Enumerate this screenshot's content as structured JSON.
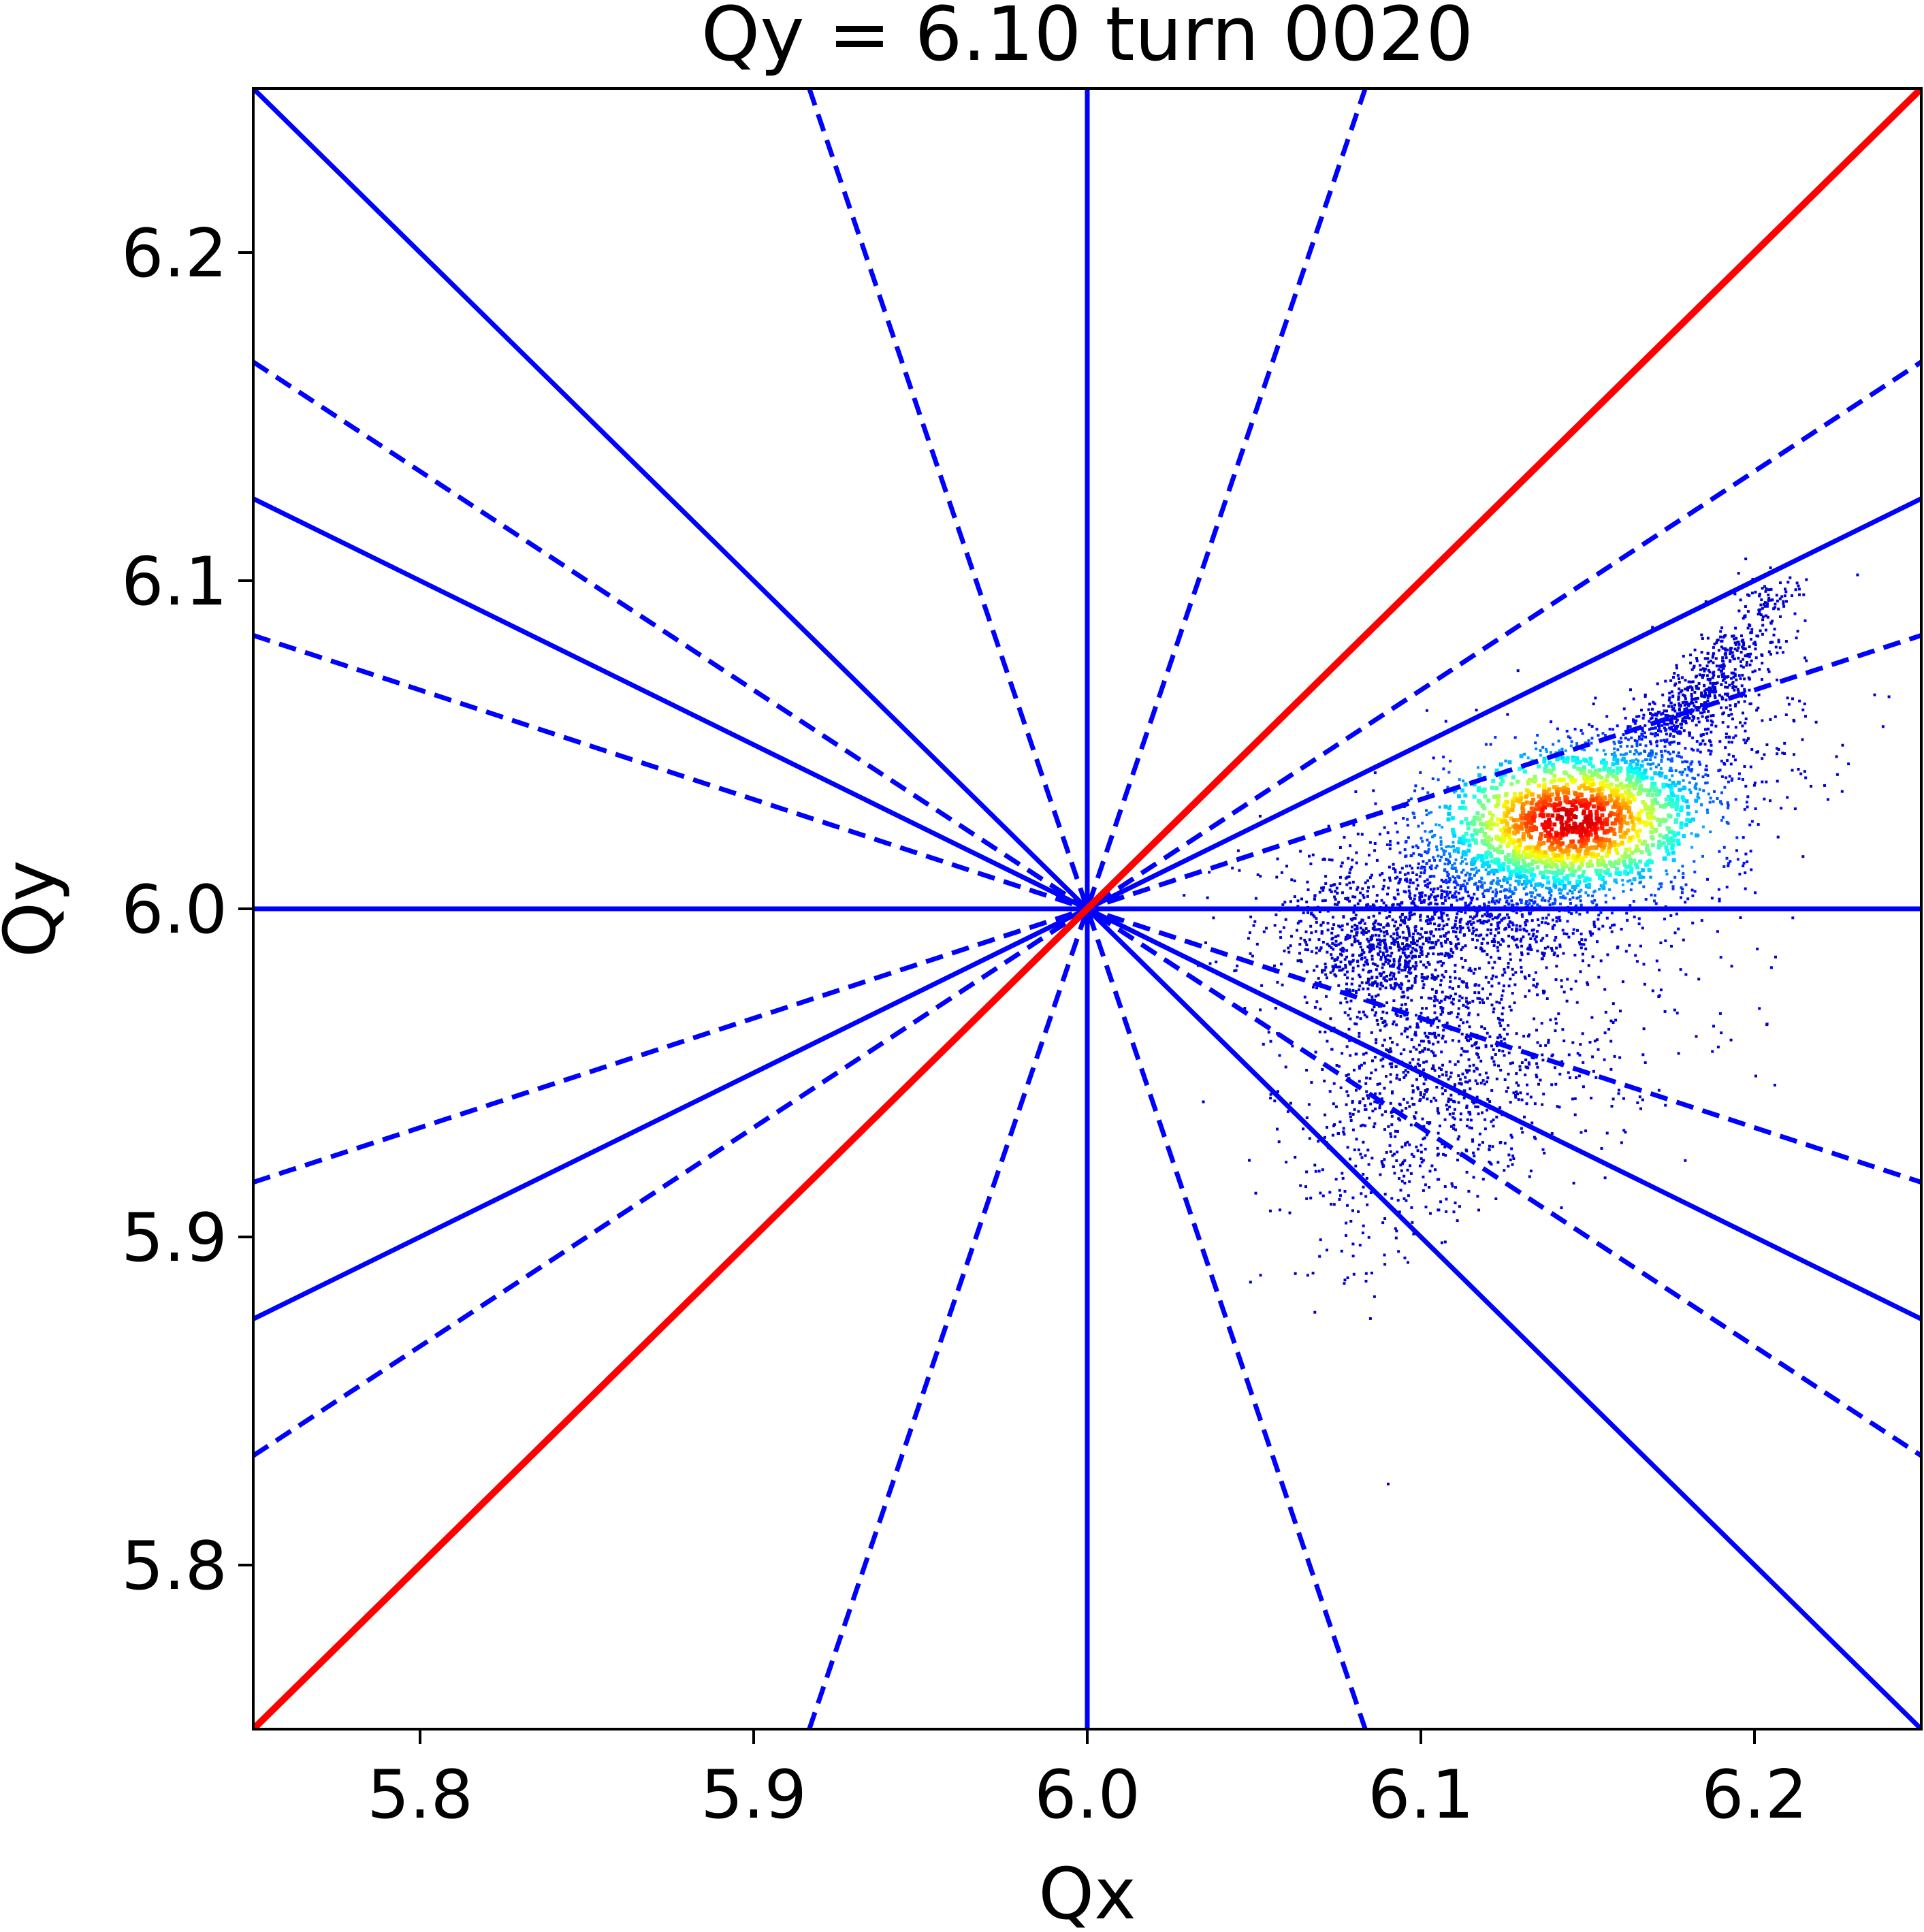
{
  "chart_data": {
    "type": "scatter",
    "title": "Qy = 6.10 turn 0020",
    "xlabel": "Qx",
    "ylabel": "Qy",
    "xlim": [
      5.75,
      6.25
    ],
    "ylim": [
      5.75,
      6.25
    ],
    "xticks": [
      5.8,
      5.9,
      6.0,
      6.1,
      6.2
    ],
    "yticks": [
      5.8,
      5.9,
      6.0,
      6.1,
      6.2
    ],
    "xtick_labels": [
      "5.8",
      "5.9",
      "6.0",
      "6.1",
      "6.2"
    ],
    "ytick_labels": [
      "5.8",
      "5.9",
      "6.0",
      "6.1",
      "6.2"
    ],
    "grid": false,
    "resonance_lines": {
      "center": [
        6.0,
        6.0
      ],
      "solid_color": "#0000ff",
      "diagonal_color": "#ff0000",
      "solid": [
        {
          "order": "1",
          "a": 1,
          "b": 0
        },
        {
          "order": "1",
          "a": 0,
          "b": 1
        },
        {
          "order": "2",
          "a": 1,
          "b": 1
        },
        {
          "order": "2",
          "a": 1,
          "b": 2
        },
        {
          "order": "2",
          "a": 1,
          "b": -2
        }
      ],
      "diagonal": [
        {
          "order": "2",
          "a": 1,
          "b": -1
        }
      ],
      "dashed": [
        {
          "order": "3",
          "a": 1,
          "b": 3
        },
        {
          "order": "3",
          "a": 1,
          "b": -3
        },
        {
          "order": "3",
          "a": 3,
          "b": 1
        },
        {
          "order": "3",
          "a": 3,
          "b": -1
        },
        {
          "order": "4",
          "a": 2,
          "b": 3
        },
        {
          "order": "4",
          "a": 2,
          "b": -3
        }
      ]
    },
    "density_points": {
      "colormap": "jet",
      "core": {
        "qx": 6.145,
        "qy": 6.027
      },
      "clusters": [
        {
          "qx": 6.145,
          "qy": 6.027,
          "sx": 0.028,
          "sy": 0.016,
          "rho": 0.55,
          "weight": 0.42
        },
        {
          "qx": 6.118,
          "qy": 6.0,
          "sx": 0.032,
          "sy": 0.012,
          "rho": 0.2,
          "weight": 0.2
        },
        {
          "qx": 6.1,
          "qy": 5.945,
          "sx": 0.017,
          "sy": 0.026,
          "rho": 0.4,
          "weight": 0.12
        },
        {
          "qx": 6.185,
          "qy": 6.065,
          "sx": 0.012,
          "sy": 0.01,
          "rho": 0.85,
          "weight": 0.07
        },
        {
          "qx": 6.088,
          "qy": 5.985,
          "sx": 0.012,
          "sy": 0.009,
          "rho": 0.0,
          "weight": 0.09
        },
        {
          "qx": 6.12,
          "qy": 5.955,
          "sx": 0.03,
          "sy": 0.02,
          "rho": 0.3,
          "weight": 0.1
        }
      ],
      "tail_end": {
        "qx": 6.208,
        "qy": 6.098
      }
    }
  }
}
